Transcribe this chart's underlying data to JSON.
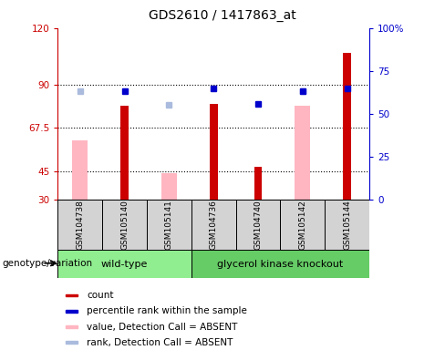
{
  "title": "GDS2610 / 1417863_at",
  "samples": [
    "GSM104738",
    "GSM105140",
    "GSM105141",
    "GSM104736",
    "GSM104740",
    "GSM105142",
    "GSM105144"
  ],
  "ylim_left": [
    30,
    120
  ],
  "ylim_right": [
    0,
    100
  ],
  "yticks_left": [
    30,
    45,
    67.5,
    90,
    120
  ],
  "yticks_right": [
    0,
    25,
    50,
    75,
    100
  ],
  "ytick_labels_left": [
    "30",
    "45",
    "67.5",
    "90",
    "120"
  ],
  "ytick_labels_right": [
    "0",
    "25",
    "50",
    "75",
    "100%"
  ],
  "left_axis_color": "#CC0000",
  "right_axis_color": "#0000CC",
  "gridlines_at": [
    45,
    67.5,
    90
  ],
  "red_bars": [
    null,
    79,
    null,
    80,
    47,
    null,
    107
  ],
  "pink_bars": [
    61,
    null,
    44,
    null,
    null,
    79,
    null
  ],
  "blue_dots": [
    null,
    63,
    null,
    65,
    56,
    63,
    65
  ],
  "light_blue_dots": [
    63,
    null,
    55,
    null,
    null,
    63,
    null
  ],
  "wt_color": "#90EE90",
  "gk_color": "#66CC66",
  "sample_box_color": "#D3D3D3"
}
